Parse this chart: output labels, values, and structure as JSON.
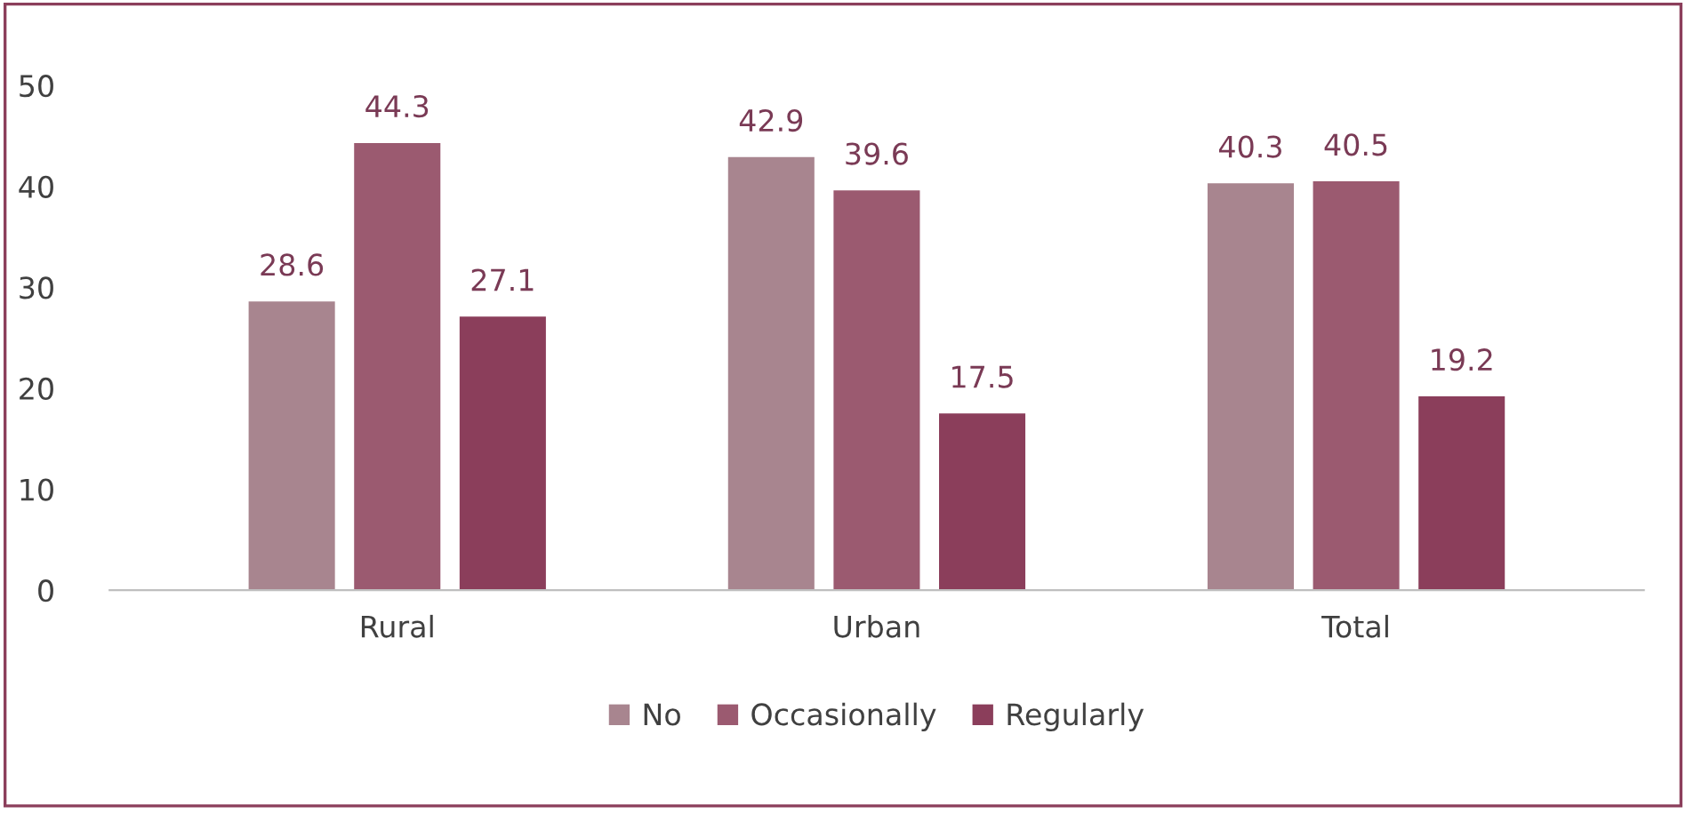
{
  "chart_data": {
    "type": "bar",
    "categories": [
      "Rural",
      "Urban",
      "Total"
    ],
    "series": [
      {
        "name": "No",
        "color": "#a8858f",
        "values": [
          28.6,
          42.9,
          40.3
        ]
      },
      {
        "name": "Occasionally",
        "color": "#9b5a70",
        "values": [
          44.3,
          39.6,
          40.5
        ]
      },
      {
        "name": "Regularly",
        "color": "#8b3e5b",
        "values": [
          27.1,
          17.5,
          19.2
        ]
      }
    ],
    "ylim": [
      0,
      50
    ],
    "yticks": [
      0,
      10,
      20,
      30,
      40,
      50
    ],
    "grid": false,
    "legend": "bottom",
    "data_labels": true
  }
}
